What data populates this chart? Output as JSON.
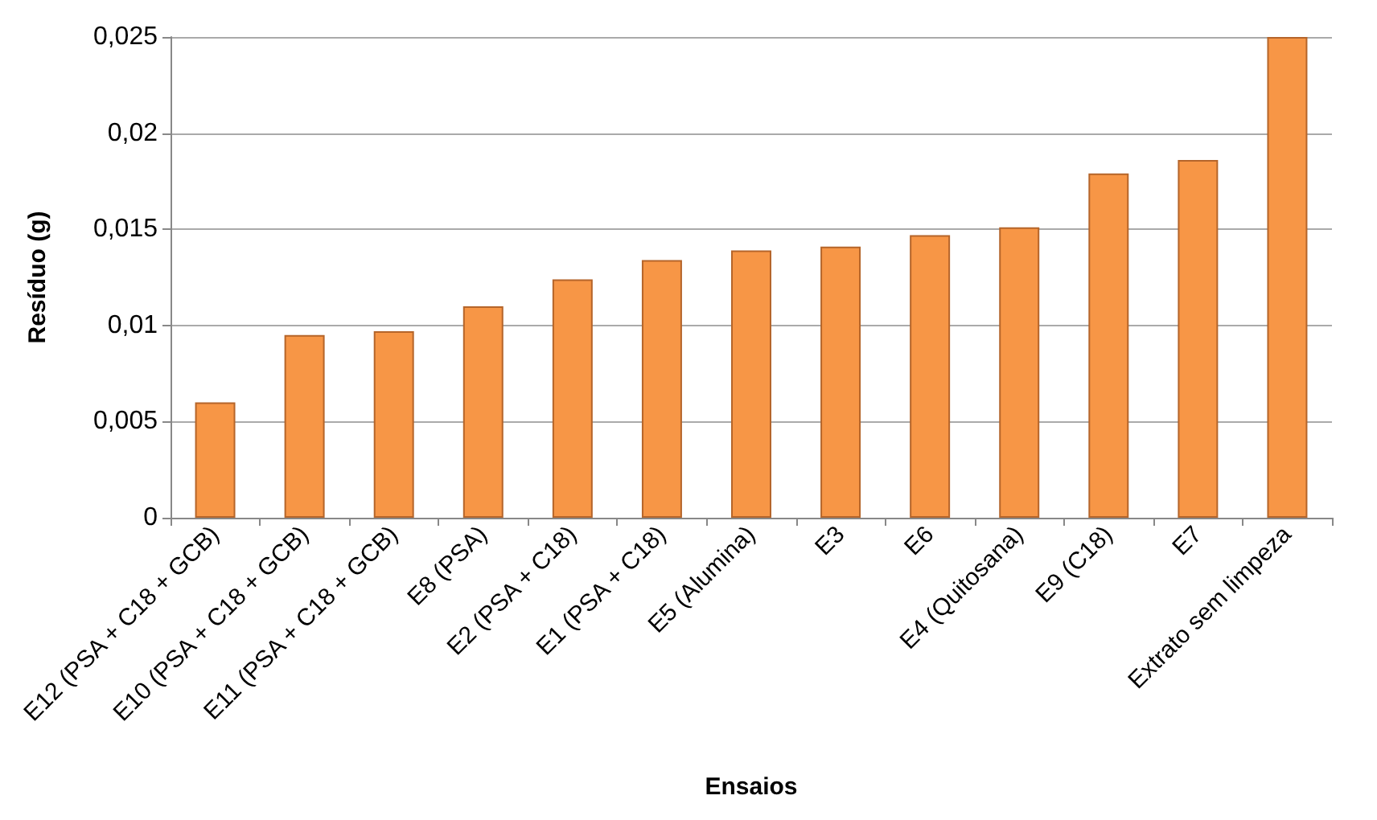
{
  "chart_data": {
    "type": "bar",
    "xlabel": "Ensaios",
    "ylabel": "Resíduo (g)",
    "categories": [
      "E12 (PSA + C18 + GCB)",
      "E10 (PSA + C18 + GCB)",
      "E11 (PSA + C18 + GCB)",
      "E8 (PSA)",
      "E2 (PSA + C18)",
      "E1 (PSA + C18)",
      "E5 (Alumina)",
      "E3",
      "E6",
      "E4 (Quitosana)",
      "E9 (C18)",
      "E7",
      "Extrato sem limpeza"
    ],
    "series": [
      {
        "color": "#f79646",
        "values": [
          0.006,
          0.0095,
          0.0097,
          0.011,
          0.0124,
          0.0134,
          0.0139,
          0.0141,
          0.0147,
          0.0151,
          0.0179,
          0.0186,
          0.025
        ]
      }
    ],
    "ylim": [
      0,
      0.025
    ],
    "yticks": [
      0,
      {
        "value": 0.005,
        "label": "0,005"
      },
      {
        "value": 0.01,
        "label": "0,01"
      },
      {
        "value": 0.015,
        "label": "0,015"
      },
      {
        "value": 0.02,
        "label": "0,02"
      },
      {
        "value": 0.025,
        "label": "0,025"
      }
    ],
    "grid": "y"
  }
}
